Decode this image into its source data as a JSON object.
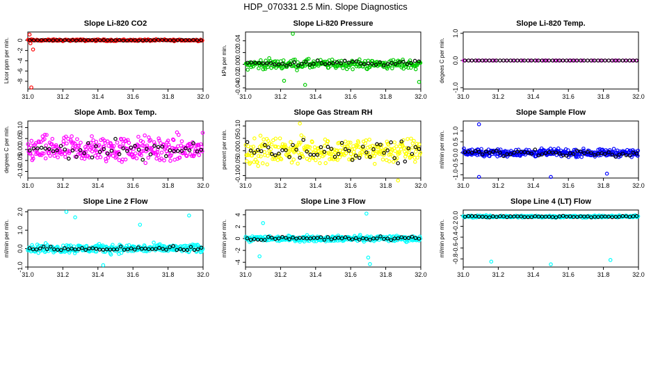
{
  "page_title": "HDP_070331  2.5 Min. Slope Diagnostics",
  "colors": {
    "red": "#ff0000",
    "green": "#00cc00",
    "magenta": "#ff00ff",
    "yellow": "#ffff00",
    "blue": "#0000ff",
    "cyan": "#00ffff",
    "black": "#000000"
  },
  "chart_data": [
    {
      "type": "scatter",
      "title": "Slope Li-820 CO2",
      "ylabel": "Licor ppm per min.",
      "xlim": [
        31.0,
        32.0
      ],
      "xticks": [
        "31.0",
        "31.2",
        "31.4",
        "31.6",
        "31.8",
        "32.0"
      ],
      "ylim": [
        -9.5,
        1.6
      ],
      "yticks": [
        0,
        -2,
        -4,
        -6,
        -8
      ],
      "ytick_labels": [
        "0",
        "-2",
        "-4",
        "-6",
        "-8"
      ],
      "color": "red",
      "series": [
        {
          "name": "main",
          "center": 0.0,
          "spread": 0.25,
          "count": 200
        },
        {
          "name": "overlay",
          "center": 0.0,
          "spread": 0.1,
          "count": 45
        }
      ],
      "outliers": [
        [
          31.01,
          1.1
        ],
        [
          31.03,
          -1.8
        ],
        [
          31.02,
          -9.2
        ],
        [
          31.015,
          -0.6
        ]
      ]
    },
    {
      "type": "scatter",
      "title": "Slope Li-820 Pressure",
      "ylabel": "kPa per min.",
      "xlim": [
        31.0,
        32.0
      ],
      "xticks": [
        "31.0",
        "31.2",
        "31.4",
        "31.6",
        "31.8",
        "32.0"
      ],
      "ylim": [
        -0.042,
        0.055
      ],
      "yticks": [
        -0.04,
        -0.02,
        0.0,
        0.02,
        0.04
      ],
      "ytick_labels": [
        "-0.04",
        "-0.02",
        "0.00",
        "0.02",
        "0.04"
      ],
      "color": "green",
      "series": [
        {
          "name": "main",
          "center": 0.0,
          "spread": 0.012,
          "count": 260
        },
        {
          "name": "overlay",
          "center": 0.002,
          "spread": 0.006,
          "count": 45
        }
      ],
      "outliers": [
        [
          31.27,
          0.052
        ],
        [
          31.22,
          -0.028
        ],
        [
          31.34,
          -0.035
        ],
        [
          31.99,
          -0.03
        ]
      ]
    },
    {
      "type": "scatter",
      "title": "Slope Li-820 Temp.",
      "ylabel": "degees C per min.",
      "xlim": [
        31.0,
        32.0
      ],
      "xticks": [
        "31.0",
        "31.2",
        "31.4",
        "31.6",
        "31.8",
        "32.0"
      ],
      "ylim": [
        -1.05,
        1.05
      ],
      "yticks": [
        -1.0,
        0.0,
        1.0
      ],
      "ytick_labels": [
        "-1.0",
        "0.0",
        "1.0"
      ],
      "color": "magenta",
      "series": [
        {
          "name": "main",
          "center": 0.0,
          "spread": 0.0,
          "count": 50
        },
        {
          "name": "overlay",
          "center": 0.0,
          "spread": 0.0,
          "count": 50
        }
      ],
      "outliers": []
    },
    {
      "type": "scatter",
      "title": "Slope Amb. Box Temp.",
      "ylabel": "degrees C per min.",
      "xlim": [
        31.0,
        32.0
      ],
      "xticks": [
        "31.0",
        "31.2",
        "31.4",
        "31.6",
        "31.8",
        "32.0"
      ],
      "ylim": [
        -0.13,
        0.13
      ],
      "yticks": [
        -0.1,
        -0.05,
        0.0,
        0.05,
        0.1
      ],
      "ytick_labels": [
        "-0.10",
        "-0.05",
        "0.00",
        "0.05",
        "0.10"
      ],
      "color": "magenta",
      "series": [
        {
          "name": "main",
          "center": 0.0,
          "spread": 0.09,
          "count": 300
        },
        {
          "name": "overlay",
          "center": 0.0,
          "spread": 0.06,
          "count": 45
        }
      ],
      "outliers": []
    },
    {
      "type": "scatter",
      "title": "Slope Gas Stream RH",
      "ylabel": "percent per min.",
      "xlim": [
        31.0,
        32.0
      ],
      "xticks": [
        "31.0",
        "31.2",
        "31.4",
        "31.6",
        "31.8",
        "32.0"
      ],
      "ylim": [
        -0.11,
        0.12
      ],
      "yticks": [
        -0.1,
        -0.05,
        0.0,
        0.05,
        0.1
      ],
      "ytick_labels": [
        "-0.10",
        "-0.05",
        "0.00",
        "0.05",
        "0.10"
      ],
      "color": "yellow",
      "series": [
        {
          "name": "main",
          "center": 0.0,
          "spread": 0.075,
          "count": 300
        },
        {
          "name": "overlay",
          "center": 0.0,
          "spread": 0.06,
          "count": 50
        }
      ],
      "outliers": [
        [
          31.31,
          0.11
        ],
        [
          31.87,
          -0.12
        ]
      ]
    },
    {
      "type": "scatter",
      "title": "Slope Sample Flow",
      "ylabel": "ml/min per min.",
      "xlim": [
        31.0,
        32.0
      ],
      "xticks": [
        "31.0",
        "31.2",
        "31.4",
        "31.6",
        "31.8",
        "32.0"
      ],
      "ylim": [
        -1.15,
        1.45
      ],
      "yticks": [
        -1.0,
        -0.5,
        0.0,
        0.5,
        1.0
      ],
      "ytick_labels": [
        "-1.0",
        "-0.5",
        "0.0",
        "0.5",
        "1.0"
      ],
      "color": "blue",
      "series": [
        {
          "name": "main",
          "center": 0.0,
          "spread": 0.25,
          "count": 320
        },
        {
          "name": "overlay",
          "center": 0.0,
          "spread": 0.2,
          "count": 50
        }
      ],
      "outliers": [
        [
          31.09,
          1.3
        ],
        [
          31.09,
          -1.1
        ],
        [
          31.5,
          -1.1
        ],
        [
          31.82,
          -0.95
        ]
      ]
    },
    {
      "type": "scatter",
      "title": "Slope Line 2 Flow",
      "ylabel": "ml/min per min.",
      "xlim": [
        31.0,
        32.0
      ],
      "xticks": [
        "31.0",
        "31.2",
        "31.4",
        "31.6",
        "31.8",
        "32.0"
      ],
      "ylim": [
        -1.0,
        2.1
      ],
      "yticks": [
        -1.0,
        0.0,
        1.0,
        2.0
      ],
      "ytick_labels": [
        "-1.0",
        "0.0",
        "1.0",
        "2.0"
      ],
      "color": "cyan",
      "series": [
        {
          "name": "main",
          "center": 0.0,
          "spread": 0.35,
          "count": 300
        },
        {
          "name": "overlay",
          "center": 0.0,
          "spread": 0.15,
          "count": 50
        }
      ],
      "outliers": [
        [
          31.22,
          2.0
        ],
        [
          31.27,
          1.7
        ],
        [
          31.92,
          1.8
        ],
        [
          31.43,
          -0.9
        ],
        [
          31.64,
          1.3
        ]
      ]
    },
    {
      "type": "scatter",
      "title": "Slope Line 3 Flow",
      "ylabel": "ml/min per min.",
      "xlim": [
        31.0,
        32.0
      ],
      "xticks": [
        "31.0",
        "31.2",
        "31.4",
        "31.6",
        "31.8",
        "32.0"
      ],
      "ylim": [
        -4.8,
        4.8
      ],
      "yticks": [
        -4,
        -2,
        0,
        2,
        4
      ],
      "ytick_labels": [
        "-4",
        "-2",
        "0",
        "2",
        "4"
      ],
      "color": "cyan",
      "series": [
        {
          "name": "main",
          "center": 0.0,
          "spread": 0.7,
          "count": 320
        },
        {
          "name": "overlay",
          "center": 0.0,
          "spread": 0.5,
          "count": 50
        }
      ],
      "outliers": [
        [
          31.69,
          4.2
        ],
        [
          31.7,
          -3.2
        ],
        [
          31.71,
          -4.3
        ],
        [
          31.08,
          -3.0
        ],
        [
          31.1,
          2.6
        ]
      ]
    },
    {
      "type": "scatter",
      "title": "Slope Line 4 (LT) Flow",
      "ylabel": "ml/min per min.",
      "xlim": [
        31.0,
        32.0
      ],
      "xticks": [
        "31.0",
        "31.2",
        "31.4",
        "31.6",
        "31.8",
        "32.0"
      ],
      "ylim": [
        -0.95,
        0.1
      ],
      "yticks": [
        -0.8,
        -0.6,
        -0.4,
        -0.2,
        0.0
      ],
      "ytick_labels": [
        "-0.8",
        "-0.6",
        "-0.4",
        "-0.2",
        "0.0"
      ],
      "color": "cyan",
      "series": [
        {
          "name": "main",
          "center": -0.02,
          "spread": 0.03,
          "count": 300
        },
        {
          "name": "overlay",
          "center": -0.02,
          "spread": 0.02,
          "count": 50
        }
      ],
      "outliers": [
        [
          31.16,
          -0.85
        ],
        [
          31.5,
          -0.9
        ],
        [
          31.84,
          -0.82
        ]
      ]
    }
  ]
}
